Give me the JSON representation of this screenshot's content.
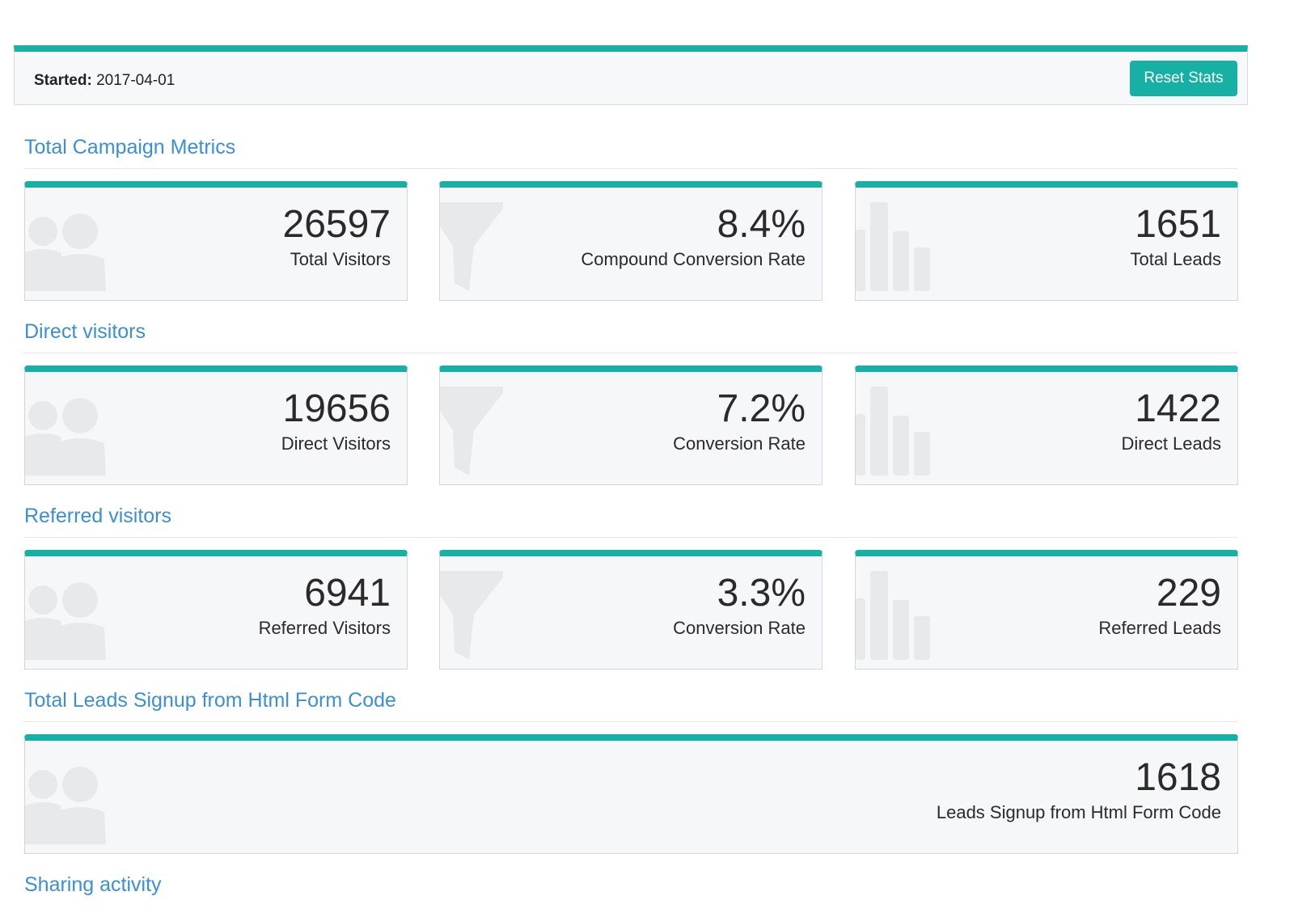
{
  "header": {
    "started_label": "Started:",
    "started_value": "2017-04-01",
    "reset_button": "Reset Stats"
  },
  "sections": [
    {
      "title": "Total Campaign Metrics",
      "cards": [
        {
          "value": "26597",
          "label": "Total Visitors",
          "icon": "users-icon"
        },
        {
          "value": "8.4%",
          "label": "Compound Conversion Rate",
          "icon": "funnel-icon"
        },
        {
          "value": "1651",
          "label": "Total Leads",
          "icon": "bar-chart-icon"
        }
      ]
    },
    {
      "title": "Direct visitors",
      "cards": [
        {
          "value": "19656",
          "label": "Direct Visitors",
          "icon": "users-icon"
        },
        {
          "value": "7.2%",
          "label": "Conversion Rate",
          "icon": "funnel-icon"
        },
        {
          "value": "1422",
          "label": "Direct Leads",
          "icon": "bar-chart-icon"
        }
      ]
    },
    {
      "title": "Referred visitors",
      "cards": [
        {
          "value": "6941",
          "label": "Referred Visitors",
          "icon": "users-icon"
        },
        {
          "value": "3.3%",
          "label": "Conversion Rate",
          "icon": "funnel-icon"
        },
        {
          "value": "229",
          "label": "Referred Leads",
          "icon": "bar-chart-icon"
        }
      ]
    },
    {
      "title": "Total Leads Signup from Html Form Code",
      "cards": [
        {
          "value": "1618",
          "label": "Leads Signup from Html Form Code",
          "icon": "users-icon"
        }
      ]
    },
    {
      "title": "Sharing activity",
      "cards": []
    }
  ],
  "colors": {
    "accent": "#16b1a4",
    "section_title": "#3b8fd6",
    "card_bg": "#f6f7f8",
    "icon": "#e8e9eb"
  }
}
